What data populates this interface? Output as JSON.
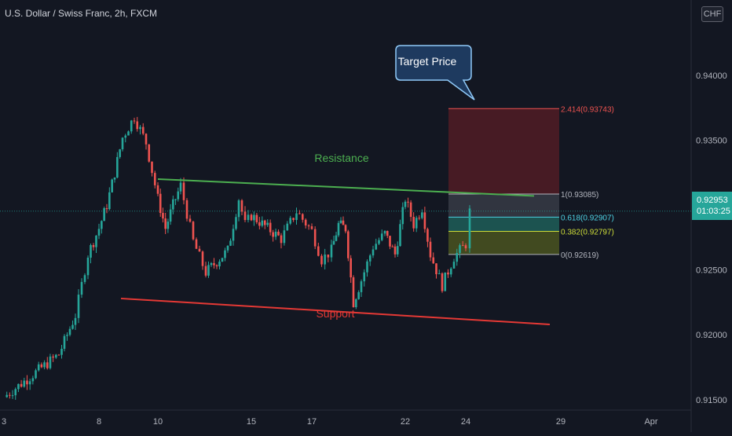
{
  "header": {
    "symbol_title": "U.S. Dollar / Swiss Franc, 2h, FXCM",
    "currency": "CHF"
  },
  "last_price": {
    "value": "0.92953",
    "countdown": "01:03:25",
    "color": "#26a69a"
  },
  "colors": {
    "background": "#131722",
    "up": "#26a69a",
    "down": "#ef5350",
    "resistance": "#4caf50",
    "support": "#e53935",
    "target_box": "#5a1e25",
    "callout_fill": "#1e3a5f",
    "callout_border": "#90caf9"
  },
  "chart_data": {
    "type": "candlestick",
    "symbol": "U.S. Dollar / Swiss Franc",
    "interval": "2h",
    "source": "FXCM",
    "ylim": [
      0.9142,
      0.9458
    ],
    "y_ticks": [
      "0.94000",
      "0.93500",
      "0.93000",
      "0.92500",
      "0.92000",
      "0.91500"
    ],
    "x_ticks": [
      "3",
      "8",
      "10",
      "15",
      "17",
      "22",
      "24",
      "29",
      "Apr"
    ],
    "price_path": [
      [
        "3",
        0.9152
      ],
      [
        "5",
        0.9185
      ],
      [
        "6",
        0.9215
      ],
      [
        "7",
        0.9262
      ],
      [
        "8",
        0.9282
      ],
      [
        "8",
        0.93
      ],
      [
        "8",
        0.9325
      ],
      [
        "9",
        0.9352
      ],
      [
        "9",
        0.9368
      ],
      [
        "9",
        0.9348
      ],
      [
        "10",
        0.9305
      ],
      [
        "10",
        0.9282
      ],
      [
        "10",
        0.93
      ],
      [
        "11",
        0.9315
      ],
      [
        "11",
        0.9272
      ],
      [
        "12",
        0.9248
      ],
      [
        "13",
        0.9265
      ],
      [
        "14",
        0.9305
      ],
      [
        "14",
        0.9285
      ],
      [
        "15",
        0.9292
      ],
      [
        "16",
        0.9274
      ],
      [
        "16",
        0.9295
      ],
      [
        "17",
        0.928
      ],
      [
        "17",
        0.9258
      ],
      [
        "18",
        0.9265
      ],
      [
        "18",
        0.9285
      ],
      [
        "19",
        0.9282
      ],
      [
        "19",
        0.9225
      ],
      [
        "20",
        0.9242
      ],
      [
        "20",
        0.9268
      ],
      [
        "21",
        0.9278
      ],
      [
        "21",
        0.9262
      ],
      [
        "22",
        0.9305
      ],
      [
        "22",
        0.9285
      ],
      [
        "22",
        0.9298
      ],
      [
        "23",
        0.9262
      ],
      [
        "23",
        0.9238
      ],
      [
        "23",
        0.926
      ],
      [
        "24",
        0.927
      ],
      [
        "24",
        0.9295
      ]
    ],
    "trend_lines": [
      {
        "name": "Resistance",
        "start": [
          "10",
          0.932
        ],
        "end": [
          "27",
          0.9307
        ]
      },
      {
        "name": "Support",
        "start": [
          "6",
          0.9228
        ],
        "end": [
          "27",
          0.9208
        ]
      }
    ],
    "fib_levels": [
      {
        "label": "2.414(0.93743)",
        "ratio": 2.414,
        "price": 0.93743,
        "color": "#ef5350"
      },
      {
        "label": "1(0.93085)",
        "ratio": 1,
        "price": 0.93085,
        "color": "#b2b5be"
      },
      {
        "label": "0.618(0.92907)",
        "ratio": 0.618,
        "price": 0.92907,
        "color": "#4dd0e1"
      },
      {
        "label": "0.382(0.92797)",
        "ratio": 0.382,
        "price": 0.92797,
        "color": "#cddc39"
      },
      {
        "label": "0(0.92619)",
        "ratio": 0,
        "price": 0.92619,
        "color": "#b2b5be"
      }
    ],
    "annotations": {
      "resistance": "Resistance",
      "support": "Support",
      "target": "Target Price"
    }
  }
}
